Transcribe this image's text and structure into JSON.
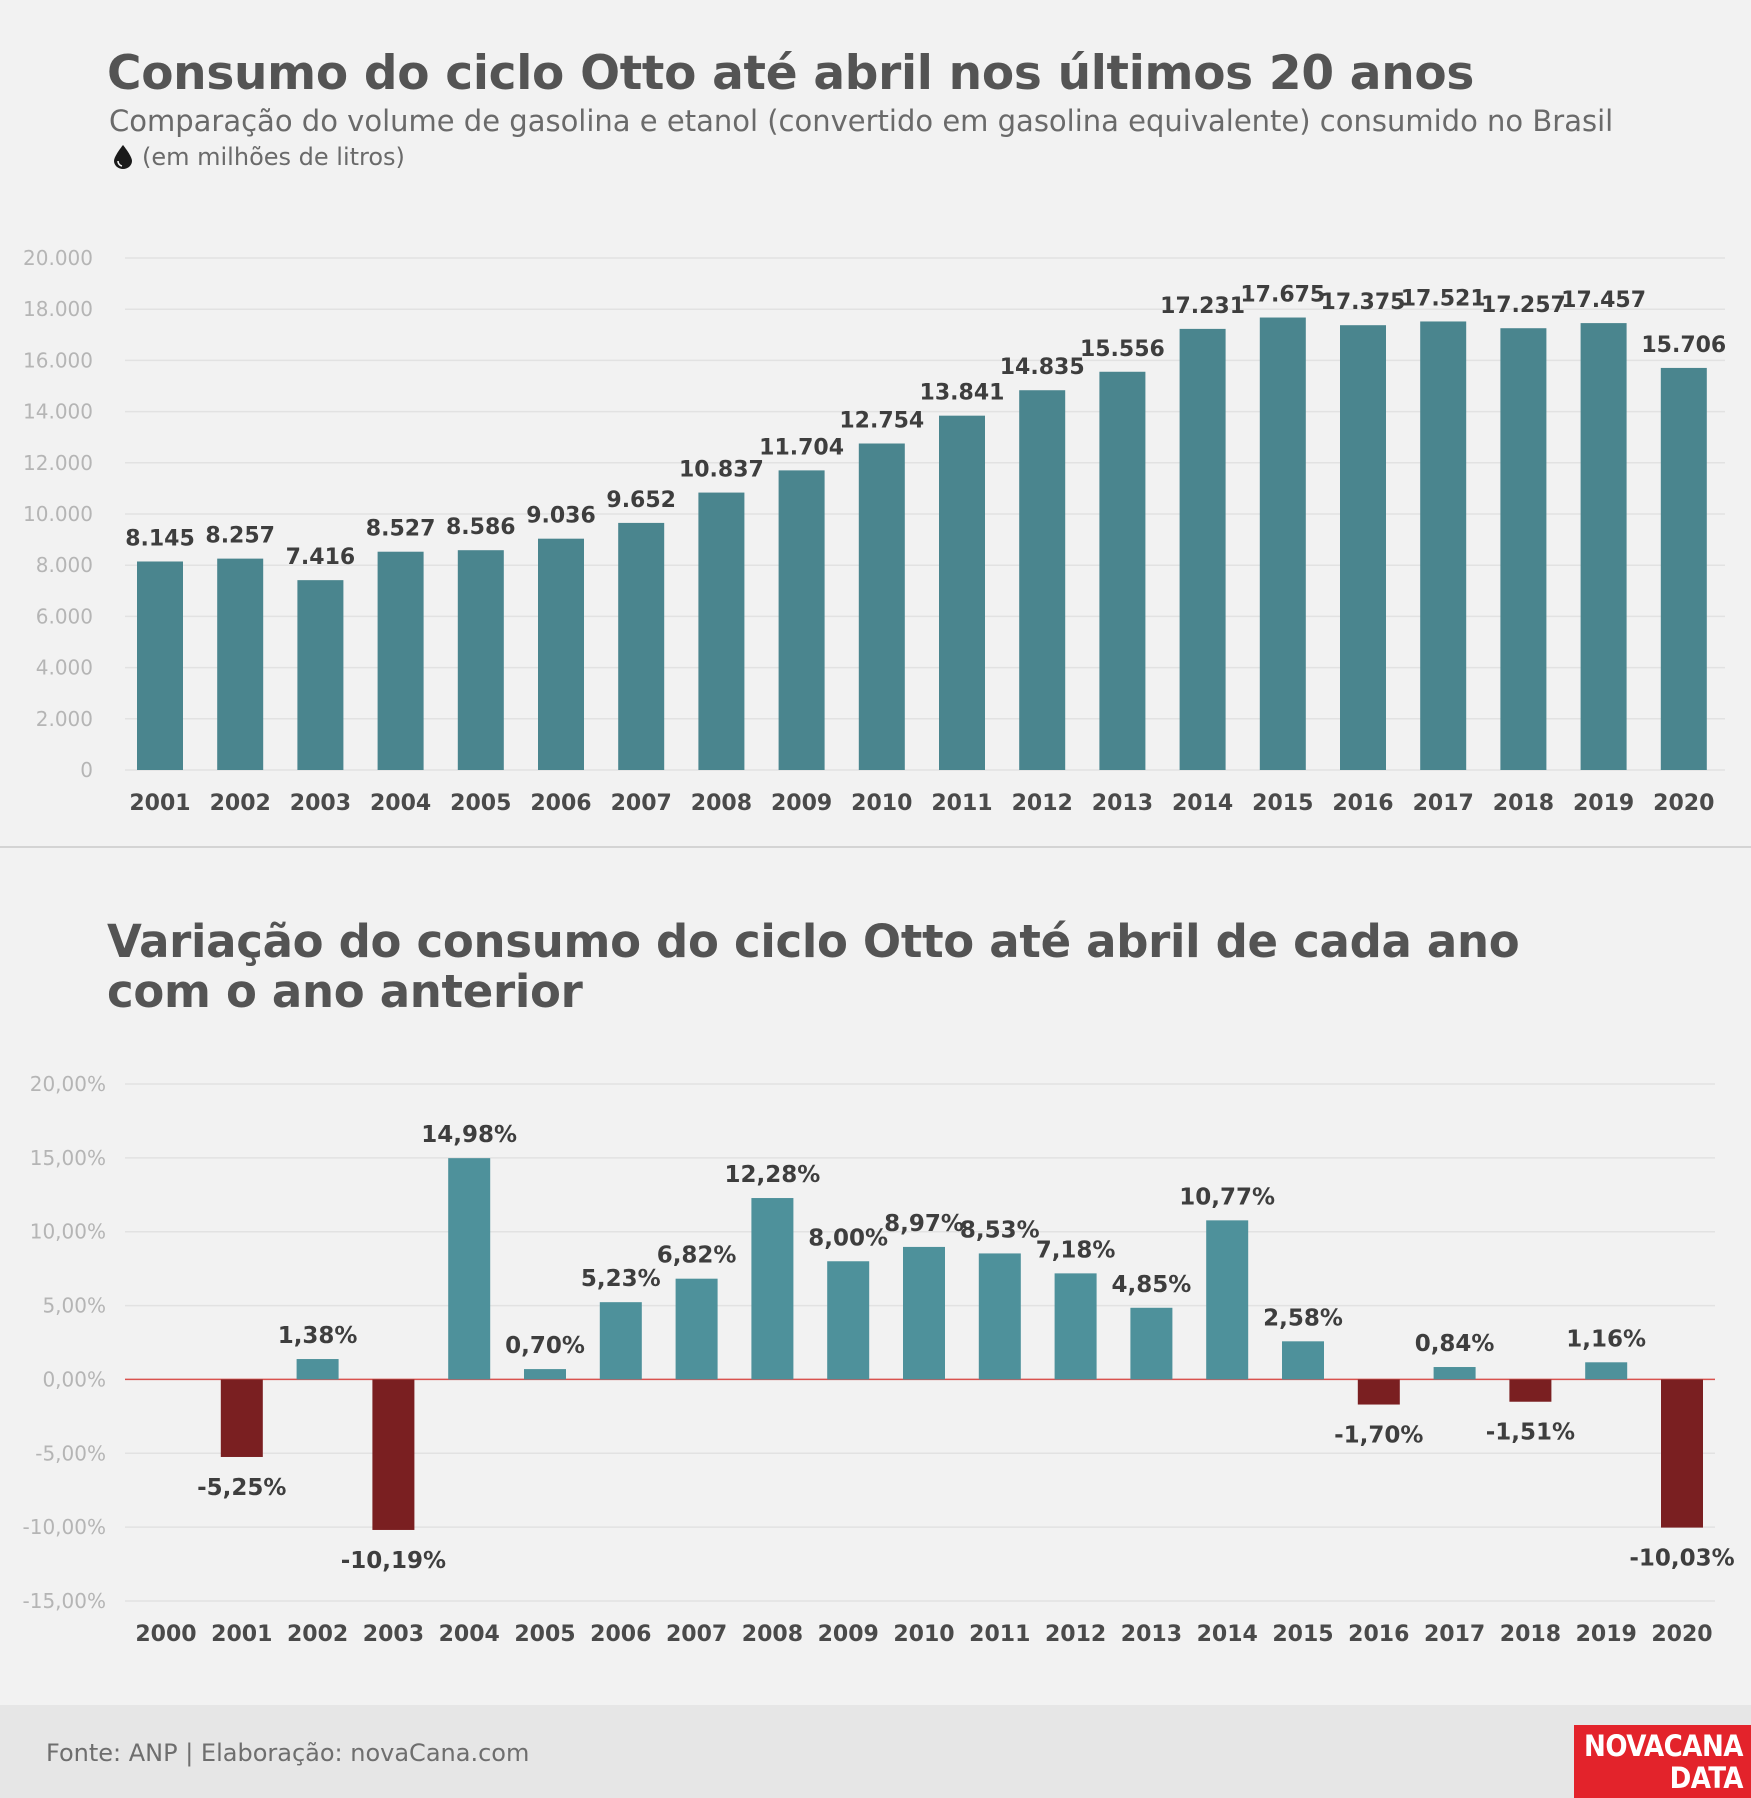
{
  "header": {
    "title": "Consumo do ciclo Otto até abril nos últimos 20 anos",
    "subtitle": "Comparação do volume de gasolina e etanol (convertido em gasolina equivalente) consumido no Brasil",
    "unit": "(em milhões de litros)"
  },
  "section2": {
    "title_line1": "Variação do consumo do ciclo Otto até abril de cada ano",
    "title_line2": "com o ano anterior"
  },
  "footer": {
    "source": "Fonte: ANP | Elaboração: novaCana.com",
    "logo_line1": "NOVACANA",
    "logo_line2": "DATA"
  },
  "colors": {
    "bar1": "#4a858e",
    "bar2_positive": "#4e919b",
    "bar2_negative": "#7a1f21",
    "zero_line": "#d9534f",
    "grid": "#e2e2e2",
    "tick_label": "#b5b5b5",
    "category_label": "#4a4a4a",
    "value_label": "#3e3e3e"
  },
  "chart_data": [
    {
      "type": "bar",
      "categories": [
        "2001",
        "2002",
        "2003",
        "2004",
        "2005",
        "2006",
        "2007",
        "2008",
        "2009",
        "2010",
        "2011",
        "2012",
        "2013",
        "2014",
        "2015",
        "2016",
        "2017",
        "2018",
        "2019",
        "2020"
      ],
      "values": [
        8145,
        8257,
        7416,
        8527,
        8586,
        9036,
        9652,
        10837,
        11704,
        12754,
        13841,
        14835,
        15556,
        17231,
        17675,
        17375,
        17521,
        17257,
        17457,
        15706
      ],
      "value_labels": [
        "8.145",
        "8.257",
        "7.416",
        "8.527",
        "8.586",
        "9.036",
        "9.652",
        "10.837",
        "11.704",
        "12.754",
        "13.841",
        "14.835",
        "15.556",
        "17.231",
        "17.675",
        "17.375",
        "17.521",
        "17.257",
        "17.457",
        "15.706"
      ],
      "ylim": [
        0,
        20000
      ],
      "y_ticks": [
        0,
        2000,
        4000,
        6000,
        8000,
        10000,
        12000,
        14000,
        16000,
        18000,
        20000
      ],
      "y_tick_labels": [
        "0",
        "2.000",
        "4.000",
        "6.000",
        "8.000",
        "10.000",
        "12.000",
        "14.000",
        "16.000",
        "18.000",
        "20.000"
      ],
      "grid": true
    },
    {
      "type": "bar",
      "categories": [
        "2000",
        "2001",
        "2002",
        "2003",
        "2004",
        "2005",
        "2006",
        "2007",
        "2008",
        "2009",
        "2010",
        "2011",
        "2012",
        "2013",
        "2014",
        "2015",
        "2016",
        "2017",
        "2018",
        "2019",
        "2020"
      ],
      "values": [
        null,
        -5.25,
        1.38,
        -10.19,
        14.98,
        0.7,
        5.23,
        6.82,
        12.28,
        8.0,
        8.97,
        8.53,
        7.18,
        4.85,
        10.77,
        2.58,
        -1.7,
        0.84,
        -1.51,
        1.16,
        -10.03
      ],
      "value_labels": [
        "",
        "-5,25%",
        "1,38%",
        "-10,19%",
        "14,98%",
        "0,70%",
        "5,23%",
        "6,82%",
        "12,28%",
        "8,00%",
        "8,97%",
        "8,53%",
        "7,18%",
        "4,85%",
        "10,77%",
        "2,58%",
        "-1,70%",
        "0,84%",
        "-1,51%",
        "1,16%",
        "-10,03%"
      ],
      "ylim": [
        -15,
        20
      ],
      "y_ticks": [
        -15,
        -10,
        -5,
        0,
        5,
        10,
        15,
        20
      ],
      "y_tick_labels": [
        "-15,00%",
        "-10,00%",
        "-5,00%",
        "0,00%",
        "5,00%",
        "10,00%",
        "15,00%",
        "20,00%"
      ],
      "grid": true
    }
  ]
}
